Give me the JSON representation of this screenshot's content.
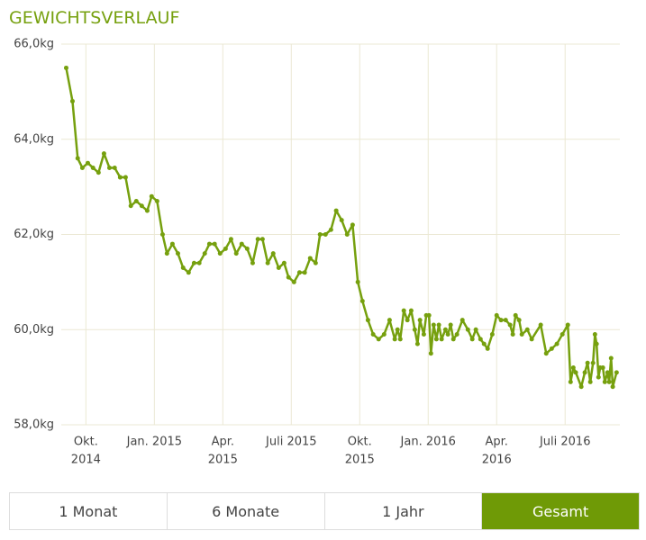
{
  "chart_data": {
    "type": "line",
    "title": "GEWICHTSVERLAUF",
    "color": "#76a00e",
    "grid": true,
    "markers": true,
    "xlim": [
      2014.66,
      2016.7
    ],
    "xticks": [
      {
        "value": 2014.75,
        "label": [
          "Okt.",
          "2014"
        ]
      },
      {
        "value": 2015.0,
        "label": "Jan. 2015"
      },
      {
        "value": 2015.25,
        "label": [
          "Apr.",
          "2015"
        ]
      },
      {
        "value": 2015.5,
        "label": "Juli 2015"
      },
      {
        "value": 2015.75,
        "label": [
          "Okt.",
          "2015"
        ]
      },
      {
        "value": 2016.0,
        "label": "Jan. 2016"
      },
      {
        "value": 2016.25,
        "label": [
          "Apr.",
          "2016"
        ]
      },
      {
        "value": 2016.5,
        "label": "Juli 2016"
      }
    ],
    "ylim": [
      58,
      66
    ],
    "yticks": [
      {
        "value": 58,
        "label": "58,0kg"
      },
      {
        "value": 60,
        "label": "60,0kg"
      },
      {
        "value": 62,
        "label": "62,0kg"
      },
      {
        "value": 64,
        "label": "64,0kg"
      },
      {
        "value": 66,
        "label": "66,0kg"
      }
    ],
    "x": [
      2014.678,
      2014.701,
      2014.72,
      2014.737,
      2014.757,
      2014.776,
      2014.796,
      2014.816,
      2014.836,
      2014.855,
      2014.875,
      2014.895,
      2014.914,
      2014.934,
      2014.954,
      2014.974,
      2014.99,
      2015.01,
      2015.03,
      2015.046,
      2015.066,
      2015.086,
      2015.105,
      2015.125,
      2015.145,
      2015.164,
      2015.184,
      2015.201,
      2015.22,
      2015.24,
      2015.26,
      2015.28,
      2015.299,
      2015.319,
      2015.339,
      2015.359,
      2015.378,
      2015.395,
      2015.414,
      2015.434,
      2015.454,
      2015.474,
      2015.49,
      2015.51,
      2015.53,
      2015.549,
      2015.569,
      2015.589,
      2015.605,
      2015.625,
      2015.645,
      2015.664,
      2015.684,
      2015.704,
      2015.724,
      2015.743,
      2015.76,
      2015.78,
      2015.799,
      2015.819,
      2015.839,
      2015.859,
      2015.878,
      2015.888,
      2015.898,
      2015.911,
      2015.924,
      2015.938,
      2015.951,
      2015.961,
      2015.97,
      2015.984,
      2015.993,
      2016.003,
      2016.01,
      2016.02,
      2016.03,
      2016.039,
      2016.049,
      2016.063,
      2016.072,
      2016.082,
      2016.092,
      2016.105,
      2016.125,
      2016.145,
      2016.161,
      2016.174,
      2016.191,
      2016.204,
      2016.217,
      2016.234,
      2016.25,
      2016.266,
      2016.283,
      2016.299,
      2016.309,
      2016.319,
      2016.332,
      2016.342,
      2016.362,
      2016.378,
      2016.411,
      2016.431,
      2016.451,
      2016.47,
      2016.49,
      2016.51,
      2016.52,
      2016.53,
      2016.539,
      2016.559,
      2016.572,
      2016.582,
      2016.592,
      2016.602,
      2016.609,
      2016.615,
      2016.622,
      2016.628,
      2016.638,
      2016.645,
      2016.655,
      2016.661,
      2016.668,
      2016.674,
      2016.688
    ],
    "values": [
      65.5,
      64.8,
      63.6,
      63.4,
      63.5,
      63.4,
      63.3,
      63.7,
      63.4,
      63.4,
      63.2,
      63.2,
      62.6,
      62.7,
      62.6,
      62.5,
      62.8,
      62.7,
      62.0,
      61.6,
      61.8,
      61.6,
      61.3,
      61.2,
      61.4,
      61.4,
      61.6,
      61.8,
      61.8,
      61.6,
      61.7,
      61.9,
      61.6,
      61.8,
      61.7,
      61.4,
      61.9,
      61.9,
      61.4,
      61.6,
      61.3,
      61.4,
      61.1,
      61.0,
      61.2,
      61.2,
      61.5,
      61.4,
      62.0,
      62.0,
      62.1,
      62.5,
      62.3,
      62.0,
      62.2,
      61.0,
      60.6,
      60.2,
      59.9,
      59.8,
      59.9,
      60.2,
      59.8,
      60.0,
      59.8,
      60.4,
      60.2,
      60.4,
      60.0,
      59.7,
      60.2,
      59.9,
      60.3,
      60.3,
      59.5,
      60.1,
      59.8,
      60.1,
      59.8,
      60.0,
      59.9,
      60.1,
      59.8,
      59.9,
      60.2,
      60.0,
      59.8,
      60.0,
      59.8,
      59.7,
      59.6,
      59.9,
      60.3,
      60.2,
      60.2,
      60.1,
      59.9,
      60.3,
      60.2,
      59.9,
      60.0,
      59.8,
      60.1,
      59.5,
      59.6,
      59.7,
      59.9,
      60.1,
      58.9,
      59.2,
      59.1,
      58.8,
      59.1,
      59.3,
      58.9,
      59.3,
      59.9,
      59.7,
      59.0,
      59.2,
      59.2,
      58.9,
      59.1,
      58.9,
      59.4,
      58.8,
      59.1
    ]
  },
  "controls": {
    "buttons": [
      "1 Monat",
      "6 Monate",
      "1 Jahr",
      "Gesamt"
    ],
    "active": 3,
    "active_color": "#6f9a06"
  }
}
